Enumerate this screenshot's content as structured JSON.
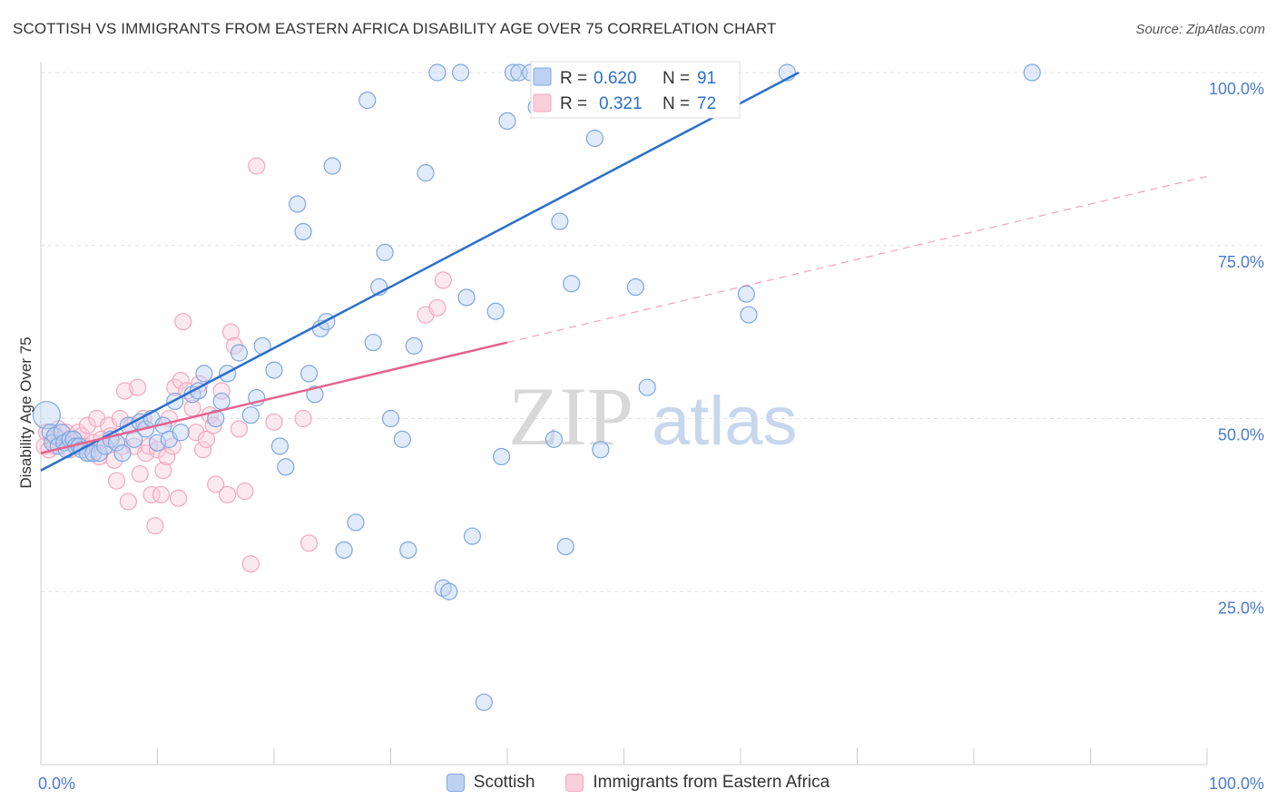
{
  "title": "SCOTTISH VS IMMIGRANTS FROM EASTERN AFRICA DISABILITY AGE OVER 75 CORRELATION CHART",
  "source": "Source: ZipAtlas.com",
  "watermark": {
    "zip": "ZIP",
    "atlas": "atlas"
  },
  "chart_data": {
    "type": "scatter",
    "ylabel": "Disability Age Over 75",
    "xlim": [
      0,
      100
    ],
    "ylim": [
      0,
      100
    ],
    "x_tick_labels": [
      "0.0%",
      "100.0%"
    ],
    "y_ticks": [
      25,
      50,
      75,
      100
    ],
    "y_tick_labels": [
      "25.0%",
      "50.0%",
      "75.0%",
      "100.0%"
    ],
    "grid": true,
    "legend_position": "top-center",
    "series": [
      {
        "name": "Scottish",
        "color": "#7ea6e0",
        "line_color": "#2a6fcc",
        "r_label": "R =",
        "r_value": "0.620",
        "n_label": "N =",
        "n_value": "91",
        "trend": {
          "x0": 0,
          "y0": 42.5,
          "x1": 65,
          "y1": 100
        },
        "points": [
          [
            0.5,
            50.5
          ],
          [
            0.8,
            48
          ],
          [
            1.0,
            46.5
          ],
          [
            1.2,
            47.5
          ],
          [
            1.5,
            46
          ],
          [
            1.8,
            48
          ],
          [
            2.0,
            46.5
          ],
          [
            2.2,
            45.5
          ],
          [
            2.5,
            47
          ],
          [
            2.8,
            47
          ],
          [
            3.0,
            46
          ],
          [
            3.3,
            46
          ],
          [
            3.5,
            45.5
          ],
          [
            4.0,
            45
          ],
          [
            4.5,
            45
          ],
          [
            5.0,
            45
          ],
          [
            5.5,
            46
          ],
          [
            6.0,
            47
          ],
          [
            6.5,
            46.5
          ],
          [
            7.0,
            45
          ],
          [
            7.5,
            49
          ],
          [
            8.0,
            47
          ],
          [
            8.5,
            49.5
          ],
          [
            9.0,
            48.5
          ],
          [
            9.5,
            50
          ],
          [
            10.0,
            46.5
          ],
          [
            10.5,
            49
          ],
          [
            11.0,
            47
          ],
          [
            11.5,
            52.5
          ],
          [
            12.0,
            48
          ],
          [
            13.0,
            53.5
          ],
          [
            13.5,
            54
          ],
          [
            14.0,
            56.5
          ],
          [
            15.0,
            50
          ],
          [
            15.5,
            52.5
          ],
          [
            16.0,
            56.5
          ],
          [
            17.0,
            59.5
          ],
          [
            18.0,
            50.5
          ],
          [
            18.5,
            53
          ],
          [
            19.0,
            60.5
          ],
          [
            20.0,
            57
          ],
          [
            20.5,
            46
          ],
          [
            21.0,
            43
          ],
          [
            22.0,
            81
          ],
          [
            22.5,
            77
          ],
          [
            23.0,
            56.5
          ],
          [
            23.5,
            53.5
          ],
          [
            24.0,
            63
          ],
          [
            24.5,
            64
          ],
          [
            25.0,
            86.5
          ],
          [
            26.0,
            31
          ],
          [
            27.0,
            35
          ],
          [
            28.0,
            96
          ],
          [
            28.5,
            61
          ],
          [
            29.0,
            69
          ],
          [
            29.5,
            74
          ],
          [
            30.0,
            50
          ],
          [
            31.0,
            47
          ],
          [
            31.5,
            31
          ],
          [
            32.0,
            60.5
          ],
          [
            33.0,
            85.5
          ],
          [
            34.0,
            100
          ],
          [
            34.5,
            25.5
          ],
          [
            35.0,
            25
          ],
          [
            36.0,
            100
          ],
          [
            36.5,
            67.5
          ],
          [
            37.0,
            33
          ],
          [
            38.0,
            9
          ],
          [
            39.0,
            65.5
          ],
          [
            39.5,
            44.5
          ],
          [
            40.0,
            93
          ],
          [
            40.5,
            100
          ],
          [
            41.0,
            100
          ],
          [
            42.0,
            100
          ],
          [
            42.5,
            95
          ],
          [
            44.0,
            47
          ],
          [
            44.5,
            78.5
          ],
          [
            45.0,
            31.5
          ],
          [
            45.5,
            69.5
          ],
          [
            46.0,
            100
          ],
          [
            47.0,
            100
          ],
          [
            47.5,
            90.5
          ],
          [
            48.0,
            45.5
          ],
          [
            50.0,
            100
          ],
          [
            51.0,
            69
          ],
          [
            52.0,
            54.5
          ],
          [
            56.0,
            100
          ],
          [
            60.5,
            68
          ],
          [
            60.7,
            65
          ],
          [
            64.0,
            100
          ],
          [
            85.0,
            100
          ]
        ]
      },
      {
        "name": "Immigrants from Eastern Africa",
        "color": "#f4a7be",
        "line_color": "#e4638f",
        "r_label": "R =",
        "r_value": "0.321",
        "n_label": "N =",
        "n_value": "72",
        "trend": {
          "x0": 0,
          "y0": 45,
          "x1": 40,
          "y1": 61
        },
        "trend_dashed": {
          "x0": 40,
          "y0": 61,
          "x1": 100,
          "y1": 85
        },
        "points": [
          [
            0.3,
            46
          ],
          [
            0.5,
            48
          ],
          [
            0.7,
            45.5
          ],
          [
            1.0,
            47
          ],
          [
            1.2,
            46
          ],
          [
            1.5,
            48.5
          ],
          [
            1.7,
            47
          ],
          [
            2.0,
            46.5
          ],
          [
            2.2,
            48
          ],
          [
            2.5,
            45.5
          ],
          [
            2.8,
            47
          ],
          [
            3.0,
            46
          ],
          [
            3.2,
            48
          ],
          [
            3.5,
            47.5
          ],
          [
            3.7,
            46
          ],
          [
            4.0,
            49
          ],
          [
            4.2,
            45
          ],
          [
            4.5,
            46.5
          ],
          [
            4.8,
            50
          ],
          [
            5.0,
            44.5
          ],
          [
            5.2,
            47
          ],
          [
            5.5,
            46
          ],
          [
            5.8,
            49
          ],
          [
            6.0,
            47.5
          ],
          [
            6.3,
            44
          ],
          [
            6.5,
            41
          ],
          [
            6.8,
            50
          ],
          [
            7.0,
            46
          ],
          [
            7.2,
            54
          ],
          [
            7.5,
            38
          ],
          [
            7.8,
            49
          ],
          [
            8.0,
            46
          ],
          [
            8.3,
            54.5
          ],
          [
            8.5,
            42
          ],
          [
            8.8,
            50
          ],
          [
            9.0,
            45
          ],
          [
            9.3,
            46
          ],
          [
            9.5,
            39
          ],
          [
            9.8,
            34.5
          ],
          [
            10.0,
            45.5
          ],
          [
            10.3,
            39
          ],
          [
            10.5,
            42.5
          ],
          [
            10.8,
            44.5
          ],
          [
            11.0,
            50
          ],
          [
            11.3,
            46
          ],
          [
            11.5,
            54.5
          ],
          [
            11.8,
            38.5
          ],
          [
            12.0,
            55.5
          ],
          [
            12.2,
            64
          ],
          [
            12.5,
            54
          ],
          [
            13.0,
            51.5
          ],
          [
            13.3,
            48
          ],
          [
            13.6,
            55
          ],
          [
            13.9,
            45.5
          ],
          [
            14.2,
            47
          ],
          [
            14.5,
            50.5
          ],
          [
            14.8,
            49
          ],
          [
            15.0,
            40.5
          ],
          [
            15.5,
            54
          ],
          [
            16.0,
            39
          ],
          [
            16.3,
            62.5
          ],
          [
            16.6,
            60.5
          ],
          [
            17.0,
            48.5
          ],
          [
            17.5,
            39.5
          ],
          [
            18.0,
            29
          ],
          [
            18.5,
            86.5
          ],
          [
            20.0,
            49.5
          ],
          [
            22.5,
            50
          ],
          [
            23.0,
            32
          ],
          [
            33.0,
            65
          ],
          [
            34.0,
            66
          ],
          [
            34.5,
            70
          ]
        ]
      }
    ]
  }
}
